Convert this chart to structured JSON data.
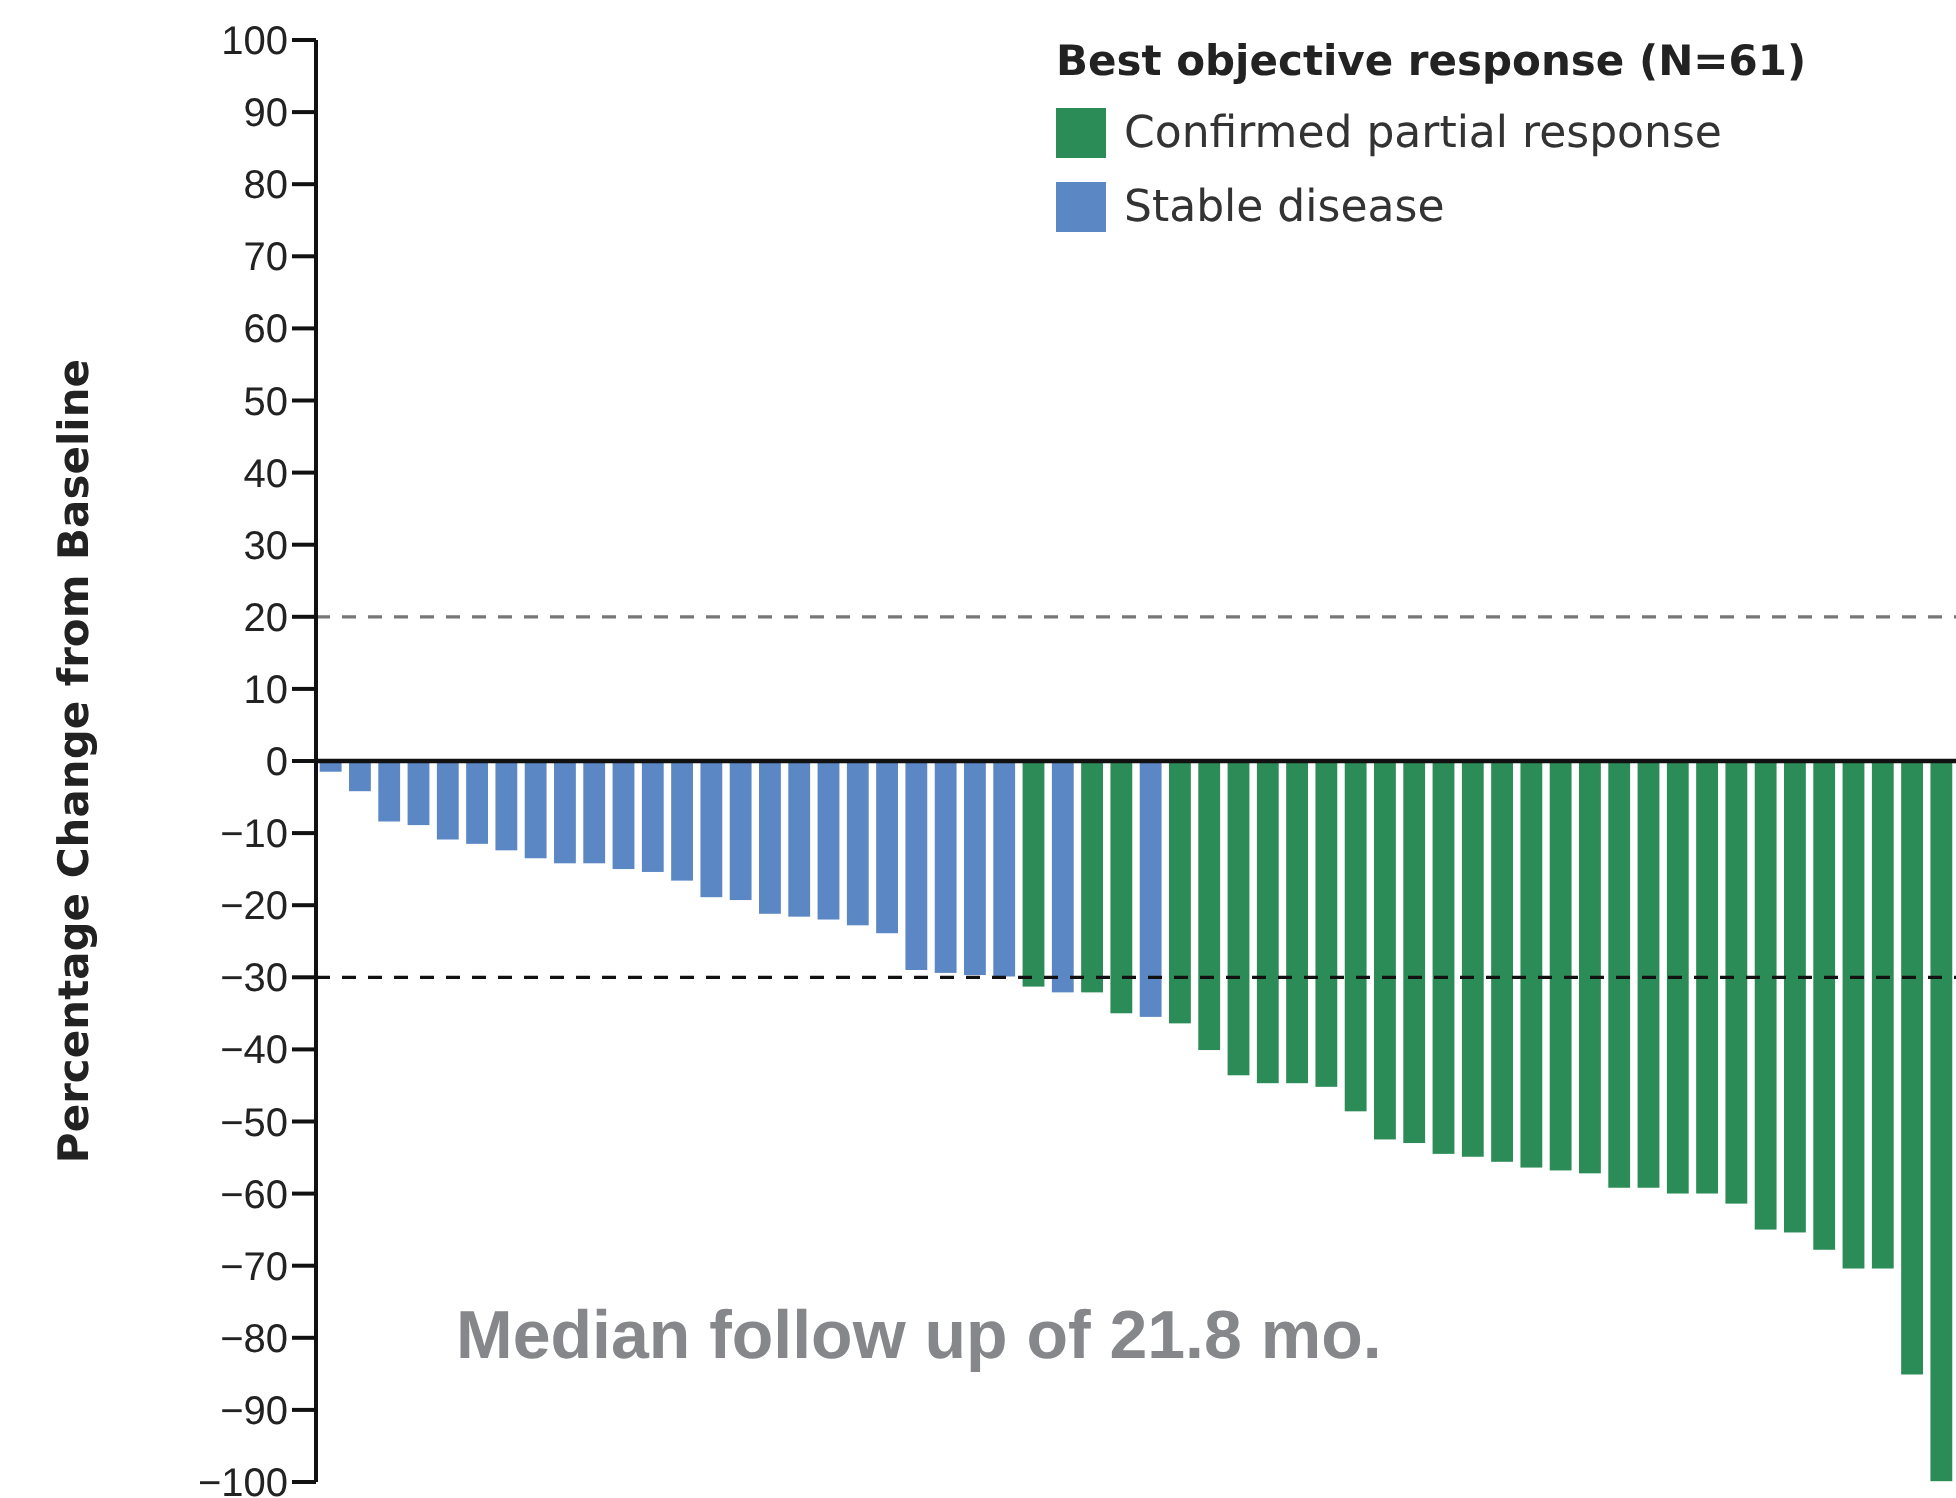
{
  "chart_data": {
    "type": "bar",
    "ylabel": "Percentage Change from Baseline",
    "legend_title": "Best objective response (N=61)",
    "categories": [
      null,
      null,
      null,
      null,
      null,
      null,
      null,
      null,
      null,
      null,
      null,
      null,
      null,
      null,
      null,
      null,
      null,
      null,
      null,
      null,
      null,
      null,
      null,
      null,
      null,
      null,
      null,
      null,
      null,
      null,
      null,
      null,
      null,
      null,
      null,
      null,
      null,
      null,
      null,
      null,
      null,
      null,
      null,
      null,
      null,
      null,
      null,
      null,
      null,
      null,
      null,
      null,
      null,
      null,
      null,
      null
    ],
    "series": [
      {
        "name": "Confirmed partial response",
        "color": "#2b8c57",
        "values": [
          null,
          null,
          null,
          null,
          null,
          null,
          null,
          null,
          null,
          null,
          null,
          null,
          null,
          null,
          null,
          null,
          null,
          null,
          null,
          null,
          null,
          null,
          null,
          null,
          -31.4,
          null,
          -32.2,
          -35.1,
          null,
          -36.5,
          -40.2,
          -43.7,
          -44.8,
          -44.8,
          -45.3,
          -48.7,
          -52.6,
          -53.1,
          -54.6,
          -55.0,
          -55.7,
          -56.5,
          -56.9,
          -57.3,
          -59.3,
          -59.3,
          -60.1,
          -60.1,
          -61.5,
          -65.1,
          -65.5,
          -67.9,
          -70.5,
          -70.5,
          -85.2,
          -100
        ]
      },
      {
        "name": "Stable disease",
        "color": "#5b87c4",
        "values": [
          -1.6,
          -4.3,
          -8.5,
          -9.0,
          -11.0,
          -11.6,
          -12.5,
          -13.6,
          -14.3,
          -14.3,
          -15.1,
          -15.5,
          -16.7,
          -19.0,
          -19.4,
          -21.3,
          -21.7,
          -22.1,
          -22.9,
          -24.0,
          -29.1,
          -29.5,
          -29.8,
          -30.0,
          null,
          -32.2,
          null,
          null,
          -35.6,
          null,
          null,
          null,
          null,
          null,
          null,
          null,
          null,
          null,
          null,
          null,
          null,
          null,
          null,
          null,
          null,
          null,
          null,
          null,
          null,
          null,
          null,
          null,
          null,
          null,
          null,
          null
        ]
      }
    ],
    "ylim": [
      -100,
      100
    ],
    "yticks": [
      -100,
      -90,
      -80,
      -70,
      -60,
      -50,
      -40,
      -30,
      -20,
      -10,
      0,
      10,
      20,
      30,
      40,
      50,
      60,
      70,
      80,
      90,
      100
    ],
    "ref_lines": [
      {
        "axis": "y",
        "value": 20,
        "color": "#777777",
        "line_style": "dashed"
      },
      {
        "axis": "y",
        "value": -30,
        "color": "#111111",
        "line_style": "dashed"
      }
    ],
    "annotations": [
      "Median follow up of 21.8 mo."
    ],
    "legend": "top right",
    "grid": false
  }
}
